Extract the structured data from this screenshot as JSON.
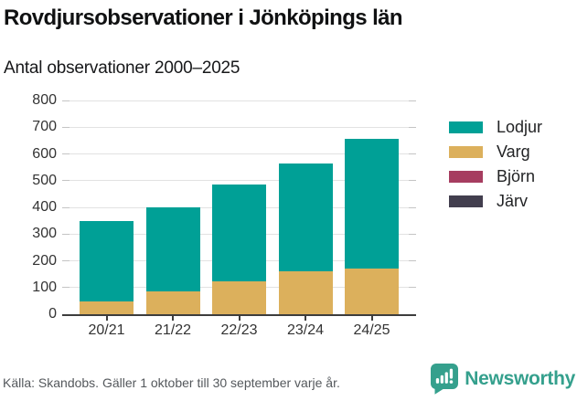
{
  "header": {
    "title": "Rovdjursobservationer i Jönköpings län",
    "subtitle": "Antal observationer 2000–2025"
  },
  "chart_data": {
    "type": "bar",
    "stacked": true,
    "title": "Rovdjursobservationer i Jönköpings län",
    "subtitle": "Antal observationer 2000–2025",
    "categories": [
      "20/21",
      "21/22",
      "22/23",
      "23/24",
      "24/25"
    ],
    "series": [
      {
        "name": "Lodjur",
        "color": "#00a096",
        "values": [
          302,
          314,
          362,
          401,
          486
        ]
      },
      {
        "name": "Varg",
        "color": "#dcb05c",
        "values": [
          48,
          86,
          122,
          162,
          170
        ]
      },
      {
        "name": "Björn",
        "color": "#a63d60",
        "values": [
          0,
          0,
          0,
          0,
          0
        ]
      },
      {
        "name": "Järv",
        "color": "#423e4e",
        "values": [
          0,
          0,
          0,
          0,
          0
        ]
      }
    ],
    "stacked_totals": [
      350,
      400,
      484,
      563,
      656
    ],
    "stack_order": "last-series-at-bottom",
    "xlabel": "",
    "ylabel": "",
    "ylim": [
      0,
      800
    ],
    "ytick_interval": 100,
    "grid": true,
    "legend_position": "right"
  },
  "footer": {
    "source": "Källa: Skandobs. Gäller 1 oktober till 30 september varje år.",
    "brand": "Newsworthy"
  },
  "colors": {
    "brand_teal": "#35a08d",
    "grid": "#e2e2e2",
    "axis": "#3d3d3d",
    "title_text": "#101112",
    "muted_text": "#54585c"
  }
}
